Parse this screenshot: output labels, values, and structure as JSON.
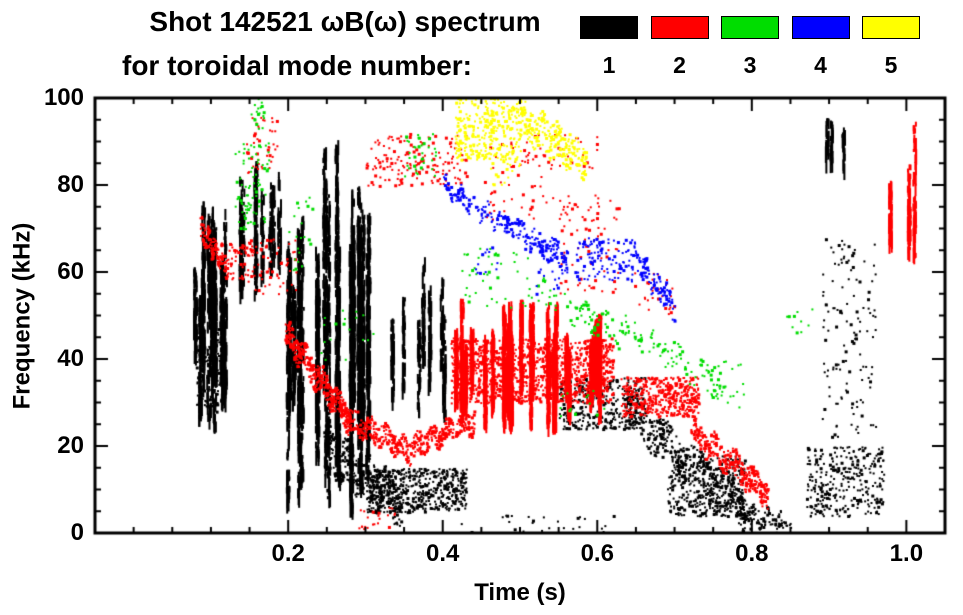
{
  "header": {
    "line1": "Shot 142521 ωB(ω) spectrum",
    "line2": "for toroidal mode number:"
  },
  "chart_data": {
    "type": "scatter",
    "title": "Shot 142521 ωB(ω) spectrum",
    "subtitle": "for toroidal mode number:",
    "xlabel": "Time (s)",
    "ylabel": "Frequency (kHz)",
    "xlim": [
      -0.05,
      1.05
    ],
    "ylim": [
      0,
      100
    ],
    "xticks": [
      0.2,
      0.4,
      0.6,
      0.8,
      1.0
    ],
    "yticks": [
      0,
      20,
      40,
      60,
      80,
      100
    ],
    "x_minor_step": 0.05,
    "y_minor_step": 5,
    "grid": false,
    "legend_position": "top-right",
    "modes": [
      {
        "mode": 1,
        "label": "1",
        "color": "#000000",
        "clusters": [
          {
            "kind": "streaks",
            "t": [
              0.075,
              0.125
            ],
            "f": [
              25,
              78
            ],
            "n": 900,
            "s": 14
          },
          {
            "kind": "blob",
            "t": [
              0.08,
              0.115
            ],
            "f": [
              28,
              48
            ],
            "n": 150
          },
          {
            "kind": "streaks",
            "t": [
              0.13,
              0.2
            ],
            "f": [
              55,
              88
            ],
            "n": 320,
            "s": 10
          },
          {
            "kind": "streaks",
            "t": [
              0.195,
              0.315
            ],
            "f": [
              3,
              93
            ],
            "n": 2600,
            "s": 26
          },
          {
            "kind": "trace",
            "t": [
              0.245,
              0.345
            ],
            "f": [
              20,
              7
            ],
            "n": 350,
            "w": 10
          },
          {
            "kind": "blob",
            "t": [
              0.3,
              0.43
            ],
            "f": [
              5,
              15
            ],
            "n": 520
          },
          {
            "kind": "streaks",
            "t": [
              0.33,
              0.405
            ],
            "f": [
              25,
              68
            ],
            "n": 260,
            "s": 7
          },
          {
            "kind": "blob",
            "t": [
              0.55,
              0.66
            ],
            "f": [
              24,
              36
            ],
            "n": 360
          },
          {
            "kind": "trace",
            "t": [
              0.64,
              0.8
            ],
            "f": [
              28,
              4
            ],
            "n": 420,
            "w": 9
          },
          {
            "kind": "blob",
            "t": [
              0.69,
              0.79
            ],
            "f": [
              4,
              18
            ],
            "n": 340
          },
          {
            "kind": "trace",
            "t": [
              0.78,
              0.85
            ],
            "f": [
              5,
              2
            ],
            "n": 110,
            "w": 4
          },
          {
            "kind": "blob",
            "t": [
              0.87,
              0.97
            ],
            "f": [
              4,
              20
            ],
            "n": 300
          },
          {
            "kind": "blob",
            "t": [
              0.89,
              0.96
            ],
            "f": [
              22,
              68
            ],
            "n": 130
          },
          {
            "kind": "streaks",
            "t": [
              0.895,
              0.925
            ],
            "f": [
              84,
              97
            ],
            "n": 60,
            "s": 3
          },
          {
            "kind": "blob",
            "t": [
              0.42,
              0.62
            ],
            "f": [
              0,
              5
            ],
            "n": 28
          }
        ]
      },
      {
        "mode": 2,
        "label": "2",
        "color": "#FF0000",
        "clusters": [
          {
            "kind": "trace",
            "t": [
              0.085,
              0.12
            ],
            "f": [
              70,
              62
            ],
            "n": 130,
            "w": 5
          },
          {
            "kind": "blob",
            "t": [
              0.12,
              0.155
            ],
            "f": [
              58,
              67
            ],
            "n": 55
          },
          {
            "kind": "blob",
            "t": [
              0.145,
              0.185
            ],
            "f": [
              83,
              96
            ],
            "n": 45
          },
          {
            "kind": "blob",
            "t": [
              0.15,
              0.21
            ],
            "f": [
              55,
              68
            ],
            "n": 60
          },
          {
            "kind": "trace",
            "t": [
              0.195,
              0.28
            ],
            "f": [
              46,
              26
            ],
            "n": 430,
            "w": 6
          },
          {
            "kind": "trace",
            "t": [
              0.28,
              0.36
            ],
            "f": [
              26,
              19
            ],
            "n": 220,
            "w": 5
          },
          {
            "kind": "trace",
            "t": [
              0.36,
              0.44
            ],
            "f": [
              20,
              26
            ],
            "n": 230,
            "w": 5
          },
          {
            "kind": "blob",
            "t": [
              0.3,
              0.43
            ],
            "f": [
              80,
              92
            ],
            "n": 170
          },
          {
            "kind": "streaks",
            "t": [
              0.4,
              0.63
            ],
            "f": [
              25,
              55
            ],
            "n": 2200,
            "s": 30
          },
          {
            "kind": "blob",
            "t": [
              0.41,
              0.62
            ],
            "f": [
              30,
              45
            ],
            "n": 1200
          },
          {
            "kind": "blob",
            "t": [
              0.63,
              0.73
            ],
            "f": [
              27,
              36
            ],
            "n": 430
          },
          {
            "kind": "trace",
            "t": [
              0.72,
              0.82
            ],
            "f": [
              24,
              9
            ],
            "n": 300,
            "w": 6
          },
          {
            "kind": "blob",
            "t": [
              0.55,
              0.63
            ],
            "f": [
              55,
              78
            ],
            "n": 80
          },
          {
            "kind": "blob",
            "t": [
              0.45,
              0.56
            ],
            "f": [
              72,
              90
            ],
            "n": 55
          },
          {
            "kind": "streaks",
            "t": [
              0.975,
              1.01
            ],
            "f": [
              60,
              95
            ],
            "n": 150,
            "s": 3
          },
          {
            "kind": "blob",
            "t": [
              0.29,
              0.34
            ],
            "f": [
              1,
              7
            ],
            "n": 22
          },
          {
            "kind": "blob",
            "t": [
              0.5,
              0.6
            ],
            "f": [
              84,
              92
            ],
            "n": 40
          },
          {
            "kind": "blob",
            "t": [
              0.64,
              0.7
            ],
            "f": [
              50,
              60
            ],
            "n": 28
          }
        ]
      },
      {
        "mode": 3,
        "label": "3",
        "color": "#00DD00",
        "clusters": [
          {
            "kind": "blob",
            "t": [
              0.13,
              0.175
            ],
            "f": [
              70,
              90
            ],
            "n": 85
          },
          {
            "kind": "blob",
            "t": [
              0.15,
              0.17
            ],
            "f": [
              93,
              100
            ],
            "n": 18
          },
          {
            "kind": "blob",
            "t": [
              0.35,
              0.39
            ],
            "f": [
              82,
              92
            ],
            "n": 35
          },
          {
            "kind": "blob",
            "t": [
              0.42,
              0.52
            ],
            "f": [
              52,
              66
            ],
            "n": 45
          },
          {
            "kind": "trace",
            "t": [
              0.52,
              0.63
            ],
            "f": [
              56,
              46
            ],
            "n": 70,
            "w": 6
          },
          {
            "kind": "trace",
            "t": [
              0.63,
              0.76
            ],
            "f": [
              48,
              34
            ],
            "n": 85,
            "w": 6
          },
          {
            "kind": "blob",
            "t": [
              0.74,
              0.79
            ],
            "f": [
              28,
              40
            ],
            "n": 30
          },
          {
            "kind": "blob",
            "t": [
              0.55,
              0.61
            ],
            "f": [
              27,
              33
            ],
            "n": 14
          },
          {
            "kind": "blob",
            "t": [
              0.84,
              0.88
            ],
            "f": [
              46,
              52
            ],
            "n": 10
          },
          {
            "kind": "blob",
            "t": [
              0.24,
              0.31
            ],
            "f": [
              40,
              52
            ],
            "n": 18
          },
          {
            "kind": "blob",
            "t": [
              0.2,
              0.23
            ],
            "f": [
              60,
              78
            ],
            "n": 22
          }
        ]
      },
      {
        "mode": 4,
        "label": "4",
        "color": "#0000FF",
        "clusters": [
          {
            "kind": "trace",
            "t": [
              0.4,
              0.47
            ],
            "f": [
              80,
              72
            ],
            "n": 90,
            "w": 4
          },
          {
            "kind": "trace",
            "t": [
              0.47,
              0.56
            ],
            "f": [
              72,
              63
            ],
            "n": 160,
            "w": 5
          },
          {
            "kind": "blob",
            "t": [
              0.57,
              0.645
            ],
            "f": [
              58,
              68
            ],
            "n": 110
          },
          {
            "kind": "trace",
            "t": [
              0.645,
              0.7
            ],
            "f": [
              64,
              52
            ],
            "n": 100,
            "w": 5
          },
          {
            "kind": "blob",
            "t": [
              0.52,
              0.56
            ],
            "f": [
              55,
              61
            ],
            "n": 14
          },
          {
            "kind": "blob",
            "t": [
              0.44,
              0.47
            ],
            "f": [
              60,
              66
            ],
            "n": 12
          }
        ]
      },
      {
        "mode": 5,
        "label": "5",
        "color": "#FFFF00",
        "clusters": [
          {
            "kind": "blob",
            "t": [
              0.415,
              0.5
            ],
            "f": [
              86,
              100
            ],
            "n": 320
          },
          {
            "kind": "trace",
            "t": [
              0.5,
              0.585
            ],
            "f": [
              95,
              86
            ],
            "n": 230,
            "w": 8
          },
          {
            "kind": "blob",
            "t": [
              0.46,
              0.5
            ],
            "f": [
              80,
              86
            ],
            "n": 18
          }
        ]
      }
    ]
  }
}
